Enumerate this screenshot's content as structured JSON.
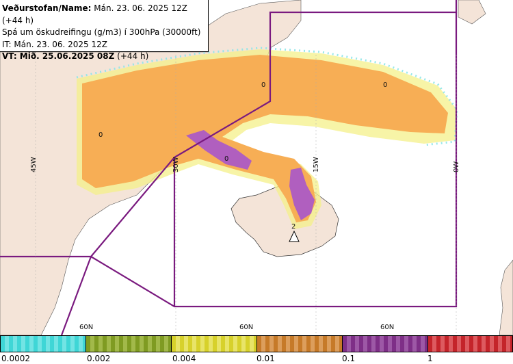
{
  "info": {
    "line1_bold": "Veðurstofan/Name:",
    "line1_rest": " Mán. 23. 06. 2025 12Z (+44 h)",
    "line2": "Spá um öskudreifingu (g/m3) í 300hPa (30000ft)",
    "line3": "IT: Mán. 23. 06. 2025 12Z",
    "line4_bold": "VT: Mið. 25.06.2025 08Z",
    "line4_rest": " (+44 h)"
  },
  "map": {
    "lon_labels": [
      "45W",
      "30W",
      "15W",
      "0W"
    ],
    "lat_labels": [
      "60N",
      "60N",
      "60N"
    ],
    "contour_labels": [
      "0",
      "0",
      "0",
      "0",
      "2"
    ],
    "colors": {
      "land": "#f4e4d8",
      "ash_orange": "#f7ae55",
      "ash_yellow": "#f4f08a",
      "ash_cyan": "#8ee6e8",
      "ash_purple": "#b05fbf",
      "boundary": "#7a1a7f"
    }
  },
  "legend": {
    "ticks": [
      "0.0002",
      "0.002",
      "0.004",
      "0.01",
      "0.1",
      "1"
    ],
    "colors": [
      "#3fd6d6",
      "#7f9b22",
      "#d7d12b",
      "#c67a28",
      "#7e2f87",
      "#c4242a"
    ]
  }
}
